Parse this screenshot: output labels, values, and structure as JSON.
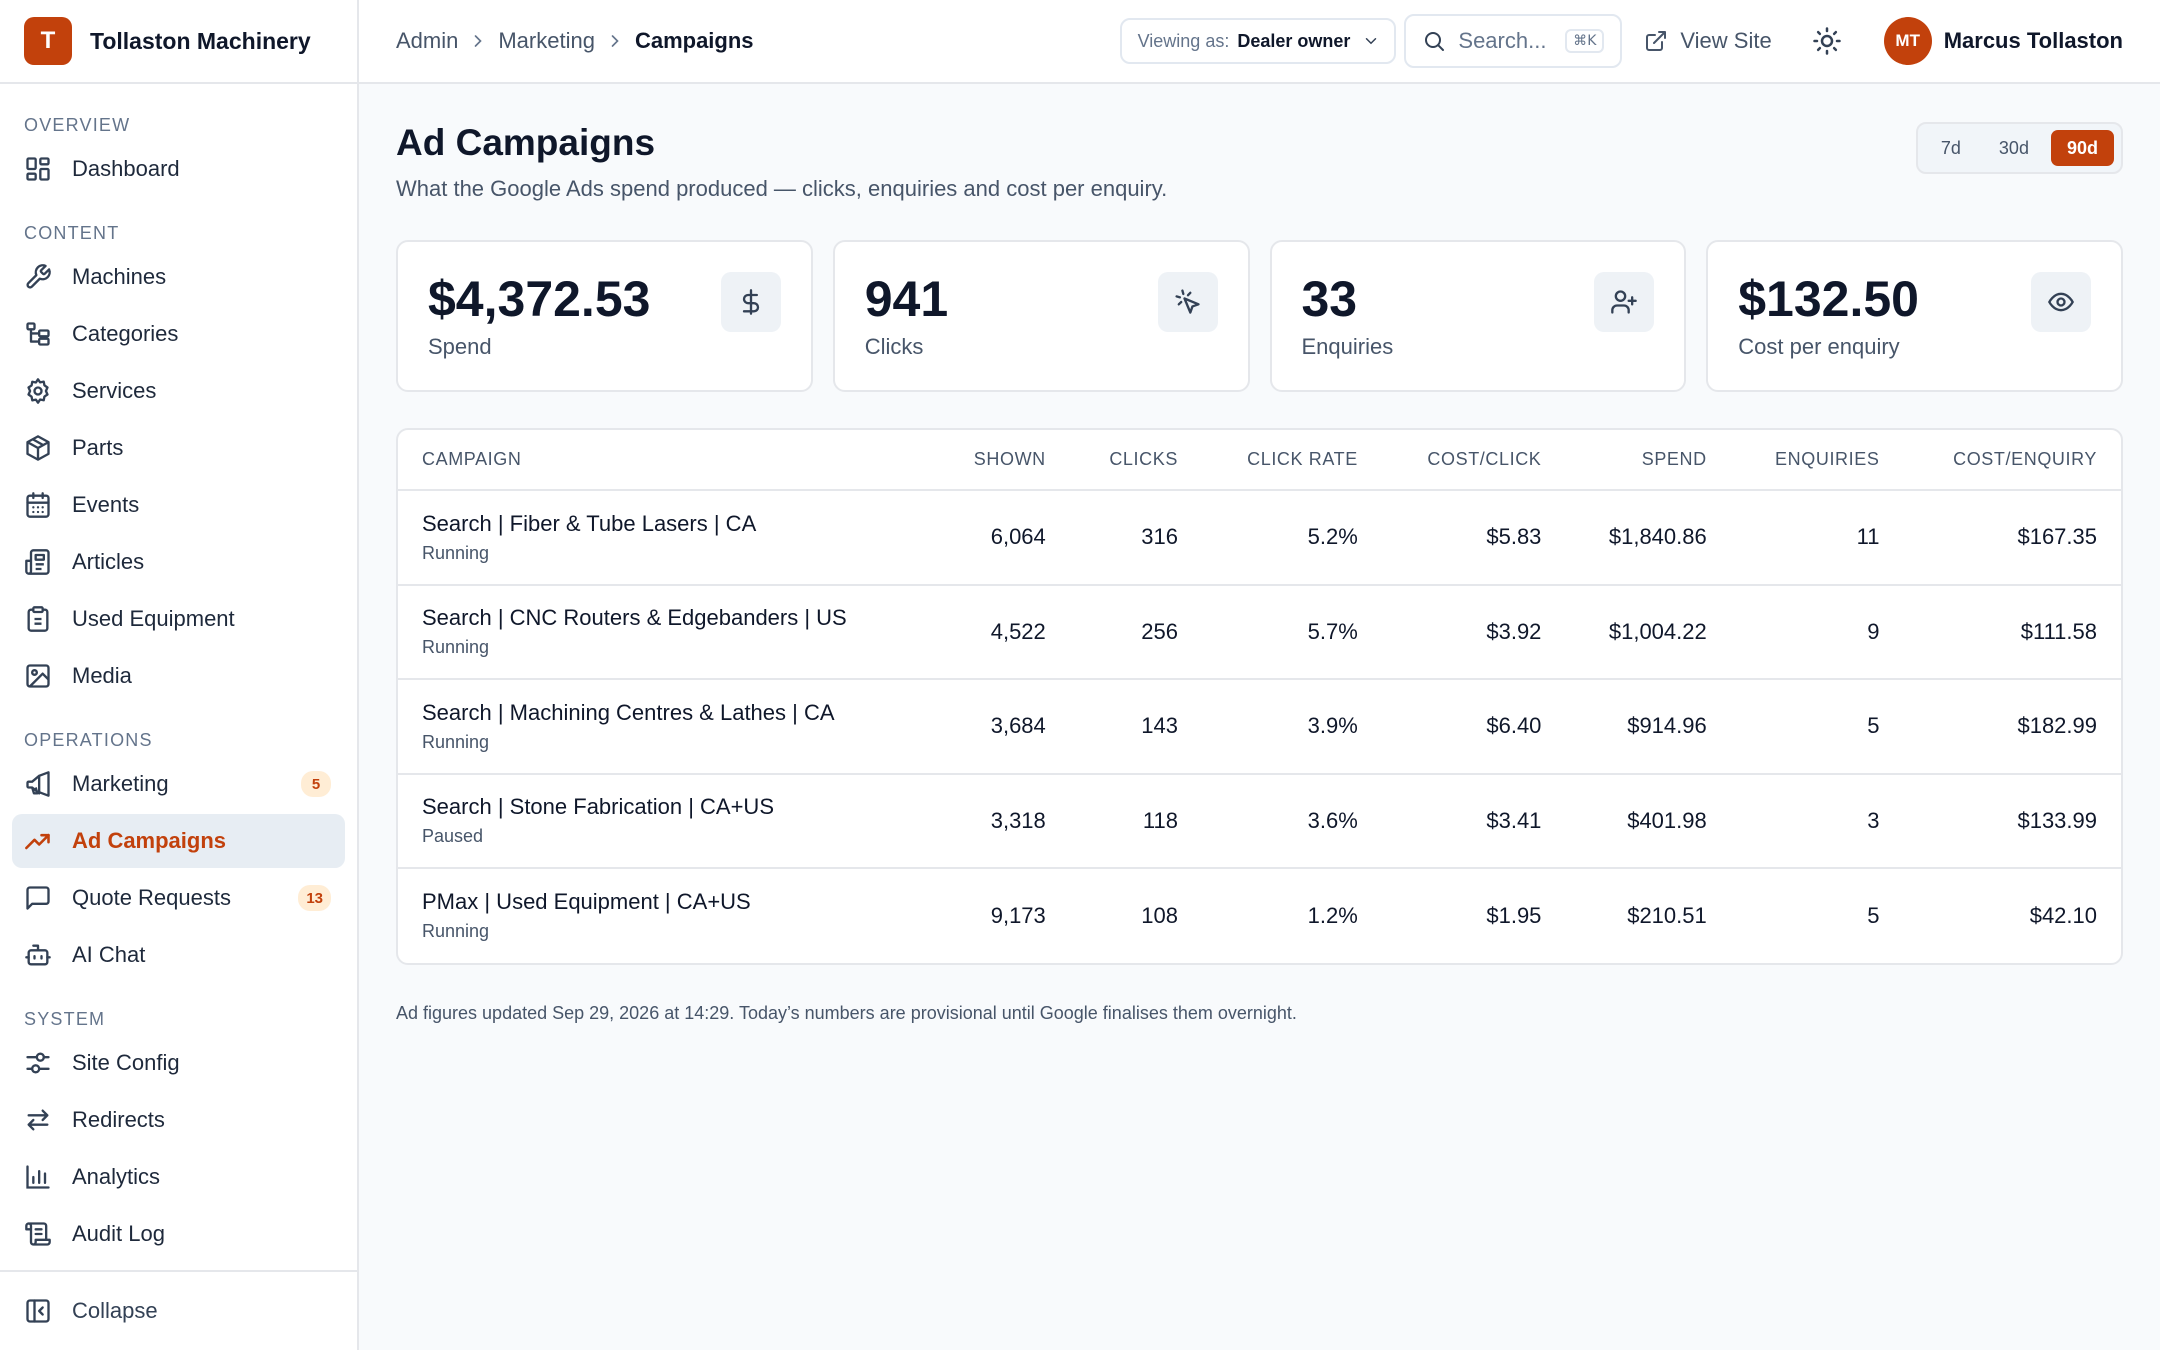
{
  "brand": {
    "initial": "T",
    "name": "Tollaston Machinery",
    "accent": "#c2410c"
  },
  "sidebar": {
    "sections": [
      {
        "label": "OVERVIEW",
        "items": [
          {
            "label": "Dashboard",
            "icon": "dashboard-icon"
          }
        ]
      },
      {
        "label": "CONTENT",
        "items": [
          {
            "label": "Machines",
            "icon": "wrench-icon"
          },
          {
            "label": "Categories",
            "icon": "tree-icon"
          },
          {
            "label": "Services",
            "icon": "gear-icon"
          },
          {
            "label": "Parts",
            "icon": "package-icon"
          },
          {
            "label": "Events",
            "icon": "calendar-icon"
          },
          {
            "label": "Articles",
            "icon": "newspaper-icon"
          },
          {
            "label": "Used Equipment",
            "icon": "clipboard-icon"
          },
          {
            "label": "Media",
            "icon": "image-icon"
          }
        ]
      },
      {
        "label": "OPERATIONS",
        "items": [
          {
            "label": "Marketing",
            "icon": "megaphone-icon",
            "badge": "5"
          },
          {
            "label": "Ad Campaigns",
            "icon": "trending-up-icon",
            "active": true
          },
          {
            "label": "Quote Requests",
            "icon": "message-icon",
            "badge": "13"
          },
          {
            "label": "AI Chat",
            "icon": "bot-icon"
          }
        ]
      },
      {
        "label": "SYSTEM",
        "items": [
          {
            "label": "Site Config",
            "icon": "sliders-icon"
          },
          {
            "label": "Redirects",
            "icon": "arrows-icon"
          },
          {
            "label": "Analytics",
            "icon": "bar-chart-icon"
          },
          {
            "label": "Audit Log",
            "icon": "scroll-icon"
          }
        ]
      }
    ],
    "collapse_label": "Collapse"
  },
  "topbar": {
    "breadcrumb": [
      "Admin",
      "Marketing",
      "Campaigns"
    ],
    "viewing_label": "Viewing as:",
    "viewing_value": "Dealer owner",
    "search_placeholder": "Search...",
    "search_shortcut": "⌘K",
    "view_site": "View Site",
    "user_initials": "MT",
    "user_name": "Marcus Tollaston"
  },
  "page": {
    "title": "Ad Campaigns",
    "subtitle": "What the Google Ads spend produced — clicks, enquiries and cost per enquiry.",
    "ranges": [
      "7d",
      "30d",
      "90d"
    ],
    "selected_range": "90d"
  },
  "stats": [
    {
      "value": "$4,372.53",
      "label": "Spend",
      "icon": "dollar-icon"
    },
    {
      "value": "941",
      "label": "Clicks",
      "icon": "pointer-click-icon"
    },
    {
      "value": "33",
      "label": "Enquiries",
      "icon": "user-plus-icon"
    },
    {
      "value": "$132.50",
      "label": "Cost per enquiry",
      "icon": "eye-icon"
    }
  ],
  "table": {
    "columns": [
      "CAMPAIGN",
      "SHOWN",
      "CLICKS",
      "CLICK RATE",
      "COST/CLICK",
      "SPEND",
      "ENQUIRIES",
      "COST/ENQUIRY"
    ],
    "rows": [
      {
        "name": "Search | Fiber & Tube Lasers | CA",
        "status": "Running",
        "shown": "6,064",
        "clicks": "316",
        "rate": "5.2%",
        "cpc": "$5.83",
        "spend": "$1,840.86",
        "enquiries": "11",
        "cpe": "$167.35"
      },
      {
        "name": "Search | CNC Routers & Edgebanders | US",
        "status": "Running",
        "shown": "4,522",
        "clicks": "256",
        "rate": "5.7%",
        "cpc": "$3.92",
        "spend": "$1,004.22",
        "enquiries": "9",
        "cpe": "$111.58"
      },
      {
        "name": "Search | Machining Centres & Lathes | CA",
        "status": "Running",
        "shown": "3,684",
        "clicks": "143",
        "rate": "3.9%",
        "cpc": "$6.40",
        "spend": "$914.96",
        "enquiries": "5",
        "cpe": "$182.99"
      },
      {
        "name": "Search | Stone Fabrication | CA+US",
        "status": "Paused",
        "shown": "3,318",
        "clicks": "118",
        "rate": "3.6%",
        "cpc": "$3.41",
        "spend": "$401.98",
        "enquiries": "3",
        "cpe": "$133.99"
      },
      {
        "name": "PMax | Used Equipment | CA+US",
        "status": "Running",
        "shown": "9,173",
        "clicks": "108",
        "rate": "1.2%",
        "cpc": "$1.95",
        "spend": "$210.51",
        "enquiries": "5",
        "cpe": "$42.10"
      }
    ]
  },
  "footnote": "Ad figures updated Sep 29, 2026 at 14:29. Today’s numbers are provisional until Google finalises them overnight."
}
